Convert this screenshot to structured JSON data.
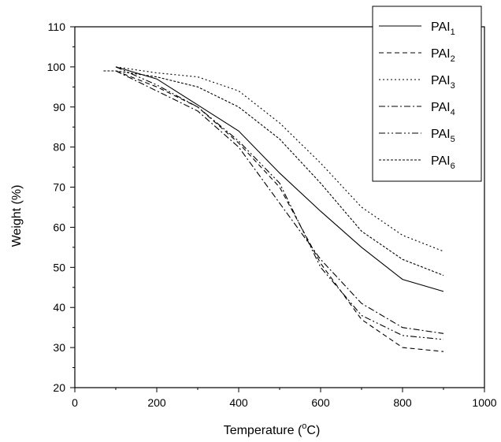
{
  "chart_data": {
    "type": "line",
    "title": "",
    "xlabel": "Temperature (",
    "xlabel_sup": "o",
    "xlabel_unit": "C)",
    "ylabel": "Weight  (%)",
    "xlim": [
      0,
      1000
    ],
    "ylim": [
      20,
      110
    ],
    "xticks": [
      0,
      200,
      400,
      600,
      800,
      1000
    ],
    "yticks": [
      20,
      30,
      40,
      50,
      60,
      70,
      80,
      90,
      100,
      110
    ],
    "grid": false,
    "legend_position": "top-right",
    "series": [
      {
        "name": "PAI",
        "sub": "1",
        "dash": "",
        "x": [
          100,
          200,
          300,
          400,
          500,
          600,
          700,
          800,
          900
        ],
        "y": [
          100,
          97,
          90.5,
          84,
          73.5,
          64,
          55,
          47,
          44
        ]
      },
      {
        "name": "PAI",
        "sub": "2",
        "dash": "6,4",
        "x": [
          100,
          200,
          300,
          400,
          500,
          600,
          700,
          800,
          900
        ],
        "y": [
          99,
          95,
          90,
          81,
          70,
          51,
          37,
          30,
          29
        ]
      },
      {
        "name": "PAI",
        "sub": "3",
        "dash": "2,3",
        "x": [
          100,
          200,
          300,
          400,
          500,
          600,
          700,
          800,
          900
        ],
        "y": [
          100,
          98.5,
          97.5,
          94,
          86,
          76,
          65,
          58,
          54
        ]
      },
      {
        "name": "PAI",
        "sub": "4",
        "dash": "8,3,2,3",
        "x": [
          100,
          200,
          300,
          400,
          500,
          600,
          700,
          800,
          900
        ],
        "y": [
          99,
          94,
          89,
          80,
          66,
          52,
          41,
          35,
          33.5
        ]
      },
      {
        "name": "PAI",
        "sub": "5",
        "dash": "8,3,2,3,2,3",
        "x": [
          100,
          200,
          300,
          400,
          500,
          600,
          700,
          800,
          900
        ],
        "y": [
          100,
          95.5,
          90,
          81.5,
          71,
          50,
          38,
          33,
          32
        ]
      },
      {
        "name": "PAI",
        "sub": "6",
        "dash": "3,2",
        "x": [
          70,
          100,
          200,
          300,
          400,
          500,
          600,
          700,
          800,
          900
        ],
        "y": [
          99,
          99,
          97.5,
          95,
          90,
          82,
          71,
          59,
          52,
          48
        ]
      }
    ]
  }
}
